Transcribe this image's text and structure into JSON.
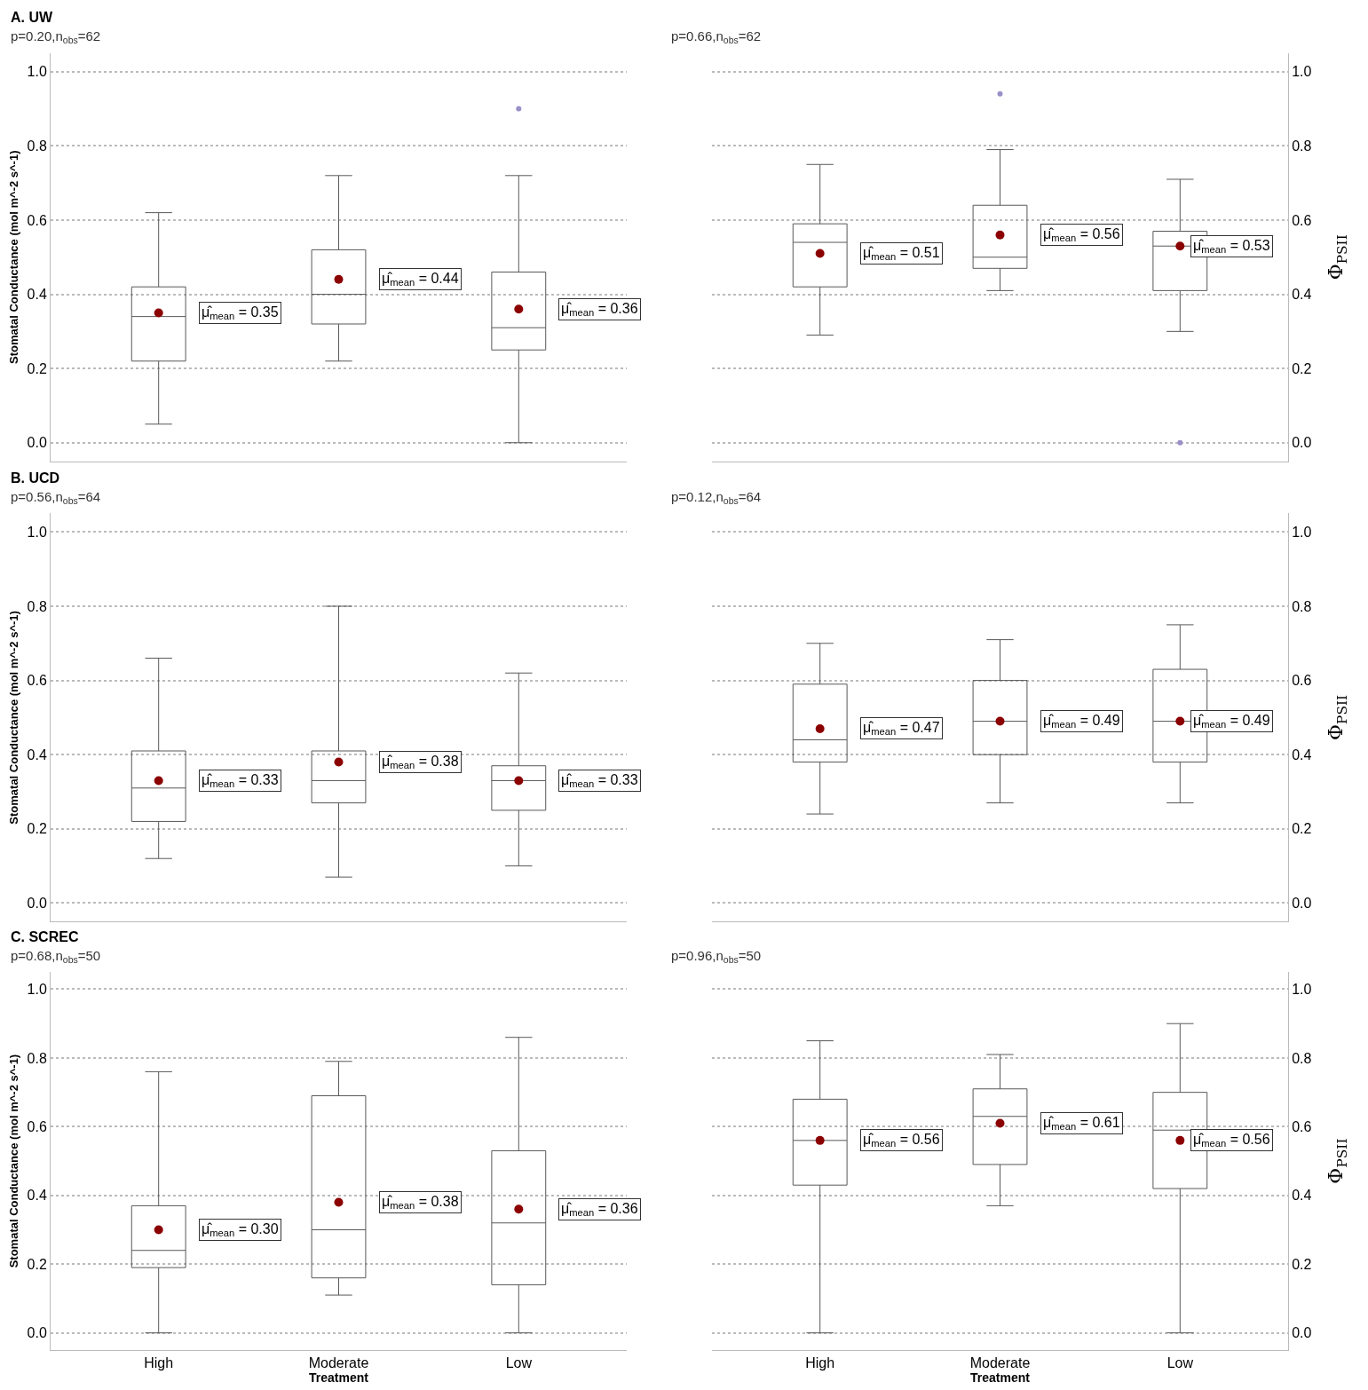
{
  "chart_data": [
    {
      "type": "box",
      "title": "A. UW",
      "subtitle": "p=0.20,n$_{obs}$=62",
      "ylabel": "Stomatal Conductance (mol m^-2 s^-1)",
      "tick_labels": "y",
      "grid": "y",
      "ylim": [
        -0.05,
        1.05
      ],
      "yticks": [
        {
          "value": 0,
          "label": "0.0"
        },
        {
          "value": 0.2,
          "label": "0.2"
        },
        {
          "value": 0.4,
          "label": "0.4"
        },
        {
          "value": 0.6,
          "label": "0.6"
        },
        {
          "value": 0.8,
          "label": "0.8"
        },
        {
          "value": 1,
          "label": "1.0"
        }
      ],
      "series": [
        {
          "color": "#595959",
          "boxes": [
            {
              "low": 0.05,
              "q1": 0.22,
              "median": 0.34,
              "q3": 0.42,
              "high": 0.62,
              "mean": 0.35
            },
            {
              "low": 0.22,
              "q1": 0.32,
              "median": 0.4,
              "q3": 0.52,
              "high": 0.72,
              "mean": 0.44
            },
            {
              "low": 0.0,
              "q1": 0.25,
              "median": 0.31,
              "q3": 0.46,
              "high": 0.72,
              "mean": 0.36,
              "outliers": [
                0.9
              ]
            }
          ]
        }
      ],
      "annotations": [
        "μ̂$_{mean}$ = 0.35",
        "μ̂$_{mean}$ = 0.44",
        "μ̂$_{mean}$ = 0.36"
      ]
    },
    {
      "type": "box",
      "subtitle": "p=0.66,n$_{obs}$=62",
      "y2label": "Φ$_{PSII}$",
      "tick_labels": "y",
      "grid": "y",
      "y2lim": [
        -0.05,
        1.05
      ],
      "y2ticks": [
        {
          "value": 0,
          "label": "0.0"
        },
        {
          "value": 0.2,
          "label": "0.2"
        },
        {
          "value": 0.4,
          "label": "0.4"
        },
        {
          "value": 0.6,
          "label": "0.6"
        },
        {
          "value": 0.8,
          "label": "0.8"
        },
        {
          "value": 1,
          "label": "1.0"
        }
      ],
      "series": [
        {
          "color": "#595959",
          "axis": "y2",
          "boxes": [
            {
              "low": 0.29,
              "q1": 0.42,
              "median": 0.54,
              "q3": 0.59,
              "high": 0.75,
              "mean": 0.51
            },
            {
              "low": 0.41,
              "q1": 0.47,
              "median": 0.5,
              "q3": 0.64,
              "high": 0.79,
              "mean": 0.56,
              "outliers": [
                0.94
              ]
            },
            {
              "low": 0.3,
              "q1": 0.41,
              "median": 0.53,
              "q3": 0.57,
              "high": 0.71,
              "mean": 0.53,
              "outliers": [
                0.0
              ]
            }
          ]
        }
      ],
      "annotations": [
        "μ̂$_{mean}$ = 0.51",
        "μ̂$_{mean}$ = 0.56",
        "μ̂$_{mean}$ = 0.53"
      ]
    },
    {
      "type": "box",
      "title": "B. UCD",
      "subtitle": "p=0.56,n$_{obs}$=64",
      "ylabel": "Stomatal Conductance (mol m^-2 s^-1)",
      "tick_labels": "y",
      "grid": "y",
      "ylim": [
        -0.05,
        1.05
      ],
      "yticks": [
        {
          "value": 0,
          "label": "0.0"
        },
        {
          "value": 0.2,
          "label": "0.2"
        },
        {
          "value": 0.4,
          "label": "0.4"
        },
        {
          "value": 0.6,
          "label": "0.6"
        },
        {
          "value": 0.8,
          "label": "0.8"
        },
        {
          "value": 1,
          "label": "1.0"
        }
      ],
      "series": [
        {
          "color": "#595959",
          "boxes": [
            {
              "low": 0.12,
              "q1": 0.22,
              "median": 0.31,
              "q3": 0.41,
              "high": 0.66,
              "mean": 0.33
            },
            {
              "low": 0.07,
              "q1": 0.27,
              "median": 0.33,
              "q3": 0.41,
              "high": 0.8,
              "mean": 0.38
            },
            {
              "low": 0.1,
              "q1": 0.25,
              "median": 0.33,
              "q3": 0.37,
              "high": 0.62,
              "mean": 0.33
            }
          ]
        }
      ],
      "annotations": [
        "μ̂$_{mean}$ = 0.33",
        "μ̂$_{mean}$ = 0.38",
        "μ̂$_{mean}$ = 0.33"
      ]
    },
    {
      "type": "box",
      "subtitle": "p=0.12,n$_{obs}$=64",
      "y2label": "Φ$_{PSII}$",
      "tick_labels": "y",
      "grid": "y",
      "y2lim": [
        -0.05,
        1.05
      ],
      "y2ticks": [
        {
          "value": 0,
          "label": "0.0"
        },
        {
          "value": 0.2,
          "label": "0.2"
        },
        {
          "value": 0.4,
          "label": "0.4"
        },
        {
          "value": 0.6,
          "label": "0.6"
        },
        {
          "value": 0.8,
          "label": "0.8"
        },
        {
          "value": 1,
          "label": "1.0"
        }
      ],
      "series": [
        {
          "color": "#595959",
          "axis": "y2",
          "boxes": [
            {
              "low": 0.24,
              "q1": 0.38,
              "median": 0.44,
              "q3": 0.59,
              "high": 0.7,
              "mean": 0.47
            },
            {
              "low": 0.27,
              "q1": 0.4,
              "median": 0.49,
              "q3": 0.6,
              "high": 0.71,
              "mean": 0.49
            },
            {
              "low": 0.27,
              "q1": 0.38,
              "median": 0.49,
              "q3": 0.63,
              "high": 0.75,
              "mean": 0.49
            }
          ]
        }
      ],
      "annotations": [
        "μ̂$_{mean}$ = 0.47",
        "μ̂$_{mean}$ = 0.49",
        "μ̂$_{mean}$ = 0.49"
      ]
    },
    {
      "type": "box",
      "title": "C. SCREC",
      "subtitle": "p=0.68,n$_{obs}$=50",
      "ylabel": "Stomatal Conductance (mol m^-2 s^-1)",
      "xlabel": "Treatment",
      "categories": [
        "High",
        "Moderate",
        "Low"
      ],
      "grid": "y",
      "ylim": [
        -0.05,
        1.05
      ],
      "yticks": [
        {
          "value": 0,
          "label": "0.0"
        },
        {
          "value": 0.2,
          "label": "0.2"
        },
        {
          "value": 0.4,
          "label": "0.4"
        },
        {
          "value": 0.6,
          "label": "0.6"
        },
        {
          "value": 0.8,
          "label": "0.8"
        },
        {
          "value": 1,
          "label": "1.0"
        }
      ],
      "series": [
        {
          "color": "#595959",
          "boxes": [
            {
              "low": 0.0,
              "q1": 0.19,
              "median": 0.24,
              "q3": 0.37,
              "high": 0.76,
              "mean": 0.3
            },
            {
              "low": 0.11,
              "q1": 0.16,
              "median": 0.3,
              "q3": 0.69,
              "high": 0.79,
              "mean": 0.38
            },
            {
              "low": 0.0,
              "q1": 0.14,
              "median": 0.32,
              "q3": 0.53,
              "high": 0.86,
              "mean": 0.36
            }
          ]
        }
      ],
      "annotations": [
        "μ̂$_{mean}$ = 0.30",
        "μ̂$_{mean}$ = 0.38",
        "μ̂$_{mean}$ = 0.36"
      ]
    },
    {
      "type": "box",
      "subtitle": "p=0.96,n$_{obs}$=50",
      "y2label": "Φ$_{PSII}$",
      "xlabel": "Treatment",
      "categories": [
        "High",
        "Moderate",
        "Low"
      ],
      "grid": "y",
      "y2lim": [
        -0.05,
        1.05
      ],
      "y2ticks": [
        {
          "value": 0,
          "label": "0.0"
        },
        {
          "value": 0.2,
          "label": "0.2"
        },
        {
          "value": 0.4,
          "label": "0.4"
        },
        {
          "value": 0.6,
          "label": "0.6"
        },
        {
          "value": 0.8,
          "label": "0.8"
        },
        {
          "value": 1,
          "label": "1.0"
        }
      ],
      "series": [
        {
          "color": "#595959",
          "axis": "y2",
          "boxes": [
            {
              "low": 0.0,
              "q1": 0.43,
              "median": 0.56,
              "q3": 0.68,
              "high": 0.85,
              "mean": 0.56
            },
            {
              "low": 0.37,
              "q1": 0.49,
              "median": 0.63,
              "q3": 0.71,
              "high": 0.81,
              "mean": 0.61
            },
            {
              "low": 0.0,
              "q1": 0.42,
              "median": 0.59,
              "q3": 0.7,
              "high": 0.9,
              "mean": 0.56
            }
          ]
        }
      ],
      "annotations": [
        "μ̂$_{mean}$ = 0.56",
        "μ̂$_{mean}$ = 0.61",
        "μ̂$_{mean}$ = 0.56"
      ]
    }
  ]
}
